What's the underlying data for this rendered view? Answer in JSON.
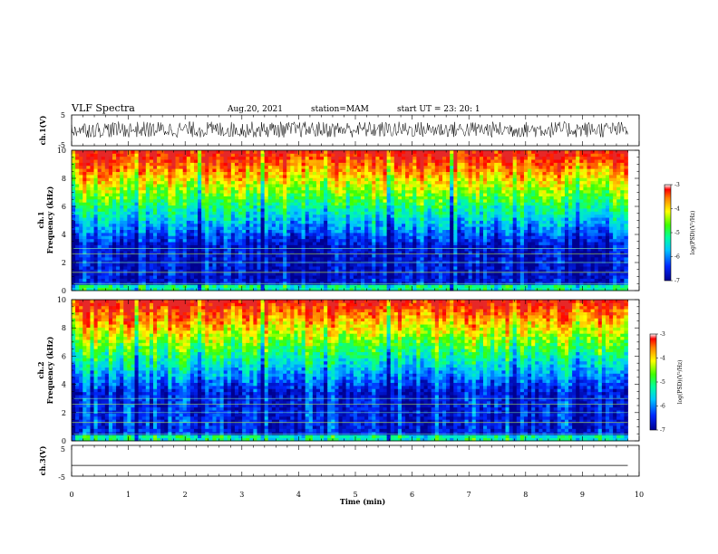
{
  "header": {
    "title": "VLF Spectra",
    "date": "Aug.20, 2021",
    "station": "station=MAM",
    "start_ut": "start  UT  =   23: 20: 1"
  },
  "chart_data": [
    {
      "type": "line",
      "panel": "ch1-waveform",
      "ylabel": "ch.1(V)",
      "ylim": [
        -5,
        5
      ],
      "yticks": [
        "5",
        "-5"
      ],
      "xlim": [
        0,
        10
      ],
      "description_series": "noisy waveform spanning roughly -2.5 to 3 V, from 0 to 9.8 min"
    },
    {
      "type": "heatmap",
      "panel": "ch1-spectrogram",
      "ylabel_line1": "ch.1",
      "ylabel_line2": "Frequency (kHz)",
      "ylim": [
        0,
        10
      ],
      "yticks": [
        "0",
        "2",
        "4",
        "6",
        "8",
        "10"
      ],
      "xlim": [
        0,
        10
      ],
      "data_extent_min": 9.8,
      "colorbar": {
        "label": "log(PSD)(V²/Hz)",
        "range": [
          -7,
          -3
        ],
        "ticks": [
          "-3",
          "-4",
          "-5",
          "-6",
          "-7"
        ]
      }
    },
    {
      "type": "heatmap",
      "panel": "ch2-spectrogram",
      "ylabel_line1": "ch.2",
      "ylabel_line2": "Frequency (kHz)",
      "ylim": [
        0,
        10
      ],
      "yticks": [
        "0",
        "2",
        "4",
        "6",
        "8",
        "10"
      ],
      "xlim": [
        0,
        10
      ],
      "data_extent_min": 9.8,
      "colorbar": {
        "label": "log(PSD)(V²/Hz)",
        "range": [
          -7,
          -3
        ],
        "ticks": [
          "-3",
          "-4",
          "-5",
          "-6",
          "-7"
        ]
      }
    },
    {
      "type": "line",
      "panel": "ch3-waveform",
      "ylabel": "ch.3(V)",
      "ylim": [
        -5,
        5
      ],
      "yticks": [
        "5",
        "-5"
      ],
      "xlim": [
        0,
        10
      ],
      "values_constant": -1.5
    }
  ],
  "xaxis": {
    "label": "Time (min)",
    "ticks": [
      "0",
      "1",
      "2",
      "3",
      "4",
      "5",
      "6",
      "7",
      "8",
      "9",
      "10"
    ]
  }
}
